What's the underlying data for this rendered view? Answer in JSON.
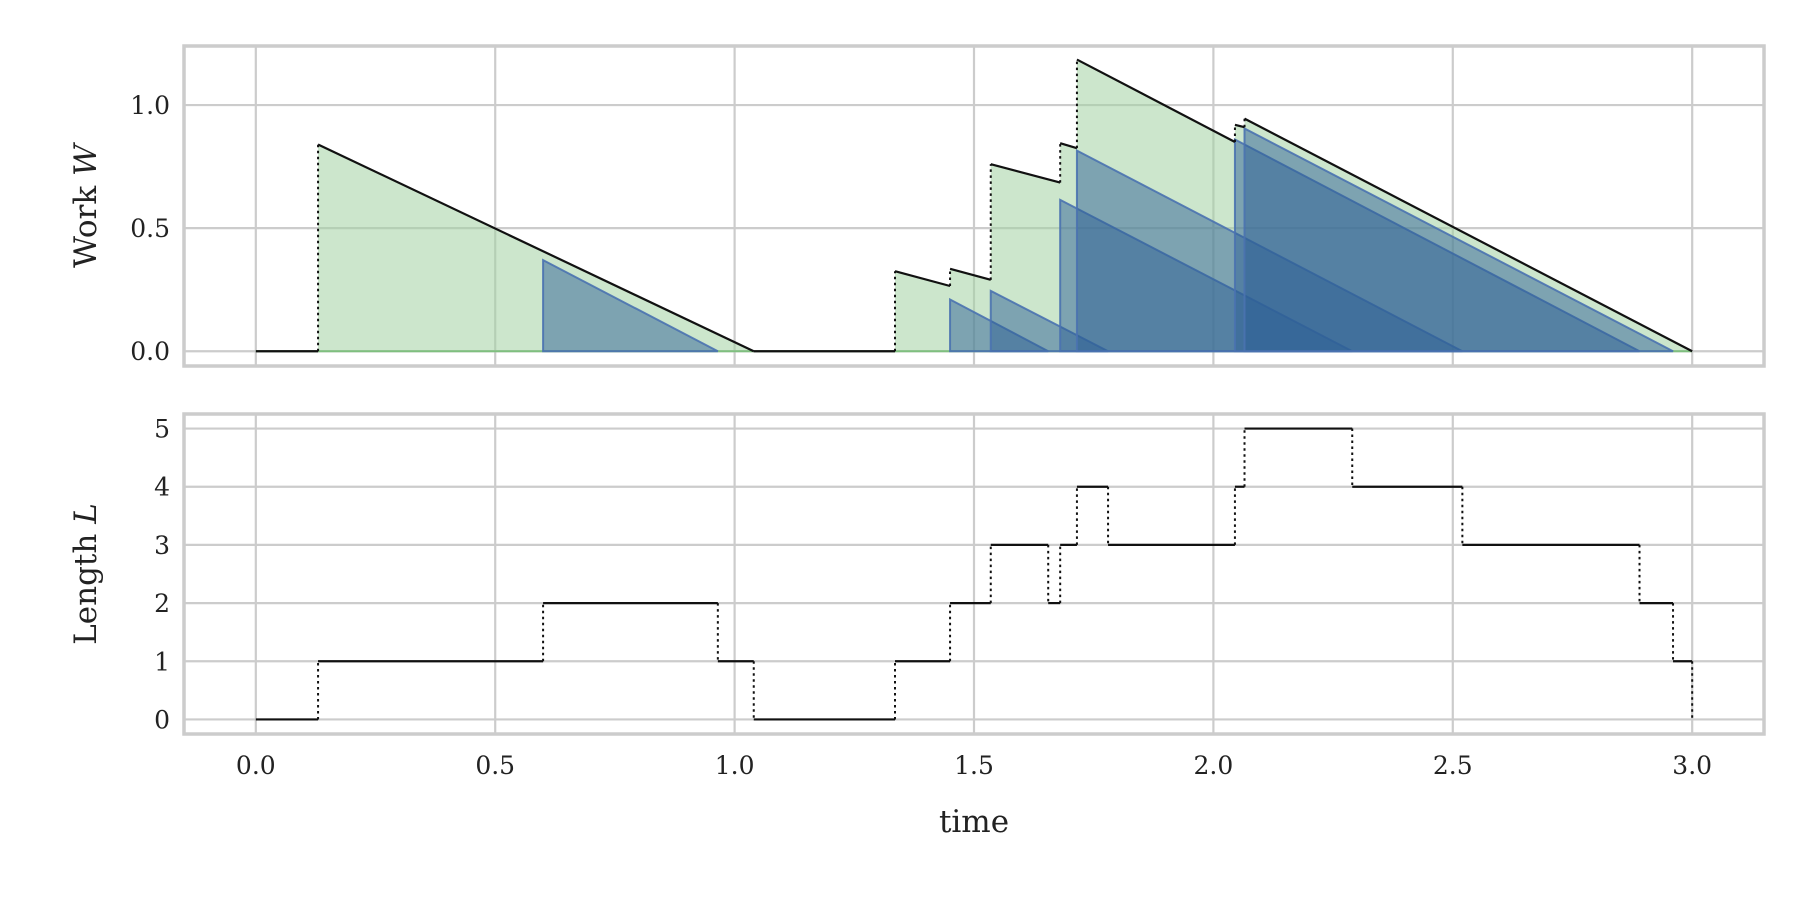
{
  "colors": {
    "background": "#ffffff",
    "grid": "#cccccc",
    "spine": "#cccccc",
    "line": "#111111",
    "total_fill": "#a3d1a3",
    "waiting_fill": "#2e5f95",
    "waiting_stroke": "#4a72b0"
  },
  "chart_data": [
    {
      "type": "area",
      "ylabel_text": "Work ",
      "ylabel_var": "W",
      "xlim": [
        -0.15,
        3.15
      ],
      "ylim": [
        -0.06,
        1.24
      ],
      "grid": true,
      "xticks": [
        0.0,
        0.5,
        1.0,
        1.5,
        2.0,
        2.5,
        3.0
      ],
      "xtick_labels": [],
      "yticks": [
        0.0,
        0.5,
        1.0
      ],
      "ytick_labels": [
        "0.0",
        "0.5",
        "1.0"
      ],
      "total_work": [
        [
          0.0,
          0.0
        ],
        [
          0.13,
          0.0
        ],
        [
          0.13,
          0.84
        ],
        [
          1.04,
          0.0
        ],
        [
          1.335,
          0.0
        ],
        [
          1.335,
          0.325
        ],
        [
          1.45,
          0.265
        ],
        [
          1.45,
          0.335
        ],
        [
          1.535,
          0.29
        ],
        [
          1.535,
          0.76
        ],
        [
          1.68,
          0.685
        ],
        [
          1.68,
          0.845
        ],
        [
          1.715,
          0.825
        ],
        [
          1.715,
          1.185
        ],
        [
          2.045,
          0.85
        ],
        [
          2.045,
          0.92
        ],
        [
          2.065,
          0.91
        ],
        [
          2.065,
          0.945
        ],
        [
          3.0,
          0.0
        ]
      ],
      "waiting_work": [
        {
          "start": 0.6,
          "end": 0.965,
          "height": 0.37
        },
        {
          "start": 1.45,
          "end": 1.655,
          "height": 0.21
        },
        {
          "start": 1.535,
          "end": 1.78,
          "height": 0.245
        },
        {
          "start": 1.68,
          "end": 2.29,
          "height": 0.615
        },
        {
          "start": 1.715,
          "end": 2.52,
          "height": 0.815
        },
        {
          "start": 2.045,
          "end": 2.89,
          "height": 0.86
        },
        {
          "start": 2.065,
          "end": 2.96,
          "height": 0.905
        }
      ]
    },
    {
      "type": "line",
      "step": true,
      "ylabel_text": "Length ",
      "ylabel_var": "L",
      "xlabel": "time",
      "xlim": [
        -0.15,
        3.15
      ],
      "ylim": [
        -0.25,
        5.25
      ],
      "grid": true,
      "xticks": [
        0.0,
        0.5,
        1.0,
        1.5,
        2.0,
        2.5,
        3.0
      ],
      "xtick_labels": [
        "0.0",
        "0.5",
        "1.0",
        "1.5",
        "2.0",
        "2.5",
        "3.0"
      ],
      "yticks": [
        0,
        1,
        2,
        3,
        4,
        5
      ],
      "ytick_labels": [
        "0",
        "1",
        "2",
        "3",
        "4",
        "5"
      ],
      "steps": [
        [
          0.0,
          0
        ],
        [
          0.13,
          1
        ],
        [
          0.6,
          2
        ],
        [
          0.965,
          1
        ],
        [
          1.04,
          0
        ],
        [
          1.335,
          1
        ],
        [
          1.45,
          2
        ],
        [
          1.535,
          3
        ],
        [
          1.655,
          2
        ],
        [
          1.68,
          3
        ],
        [
          1.715,
          4
        ],
        [
          1.78,
          3
        ],
        [
          2.045,
          4
        ],
        [
          2.065,
          5
        ],
        [
          2.29,
          4
        ],
        [
          2.52,
          3
        ],
        [
          2.89,
          2
        ],
        [
          2.96,
          1
        ],
        [
          3.0,
          0
        ]
      ]
    }
  ]
}
